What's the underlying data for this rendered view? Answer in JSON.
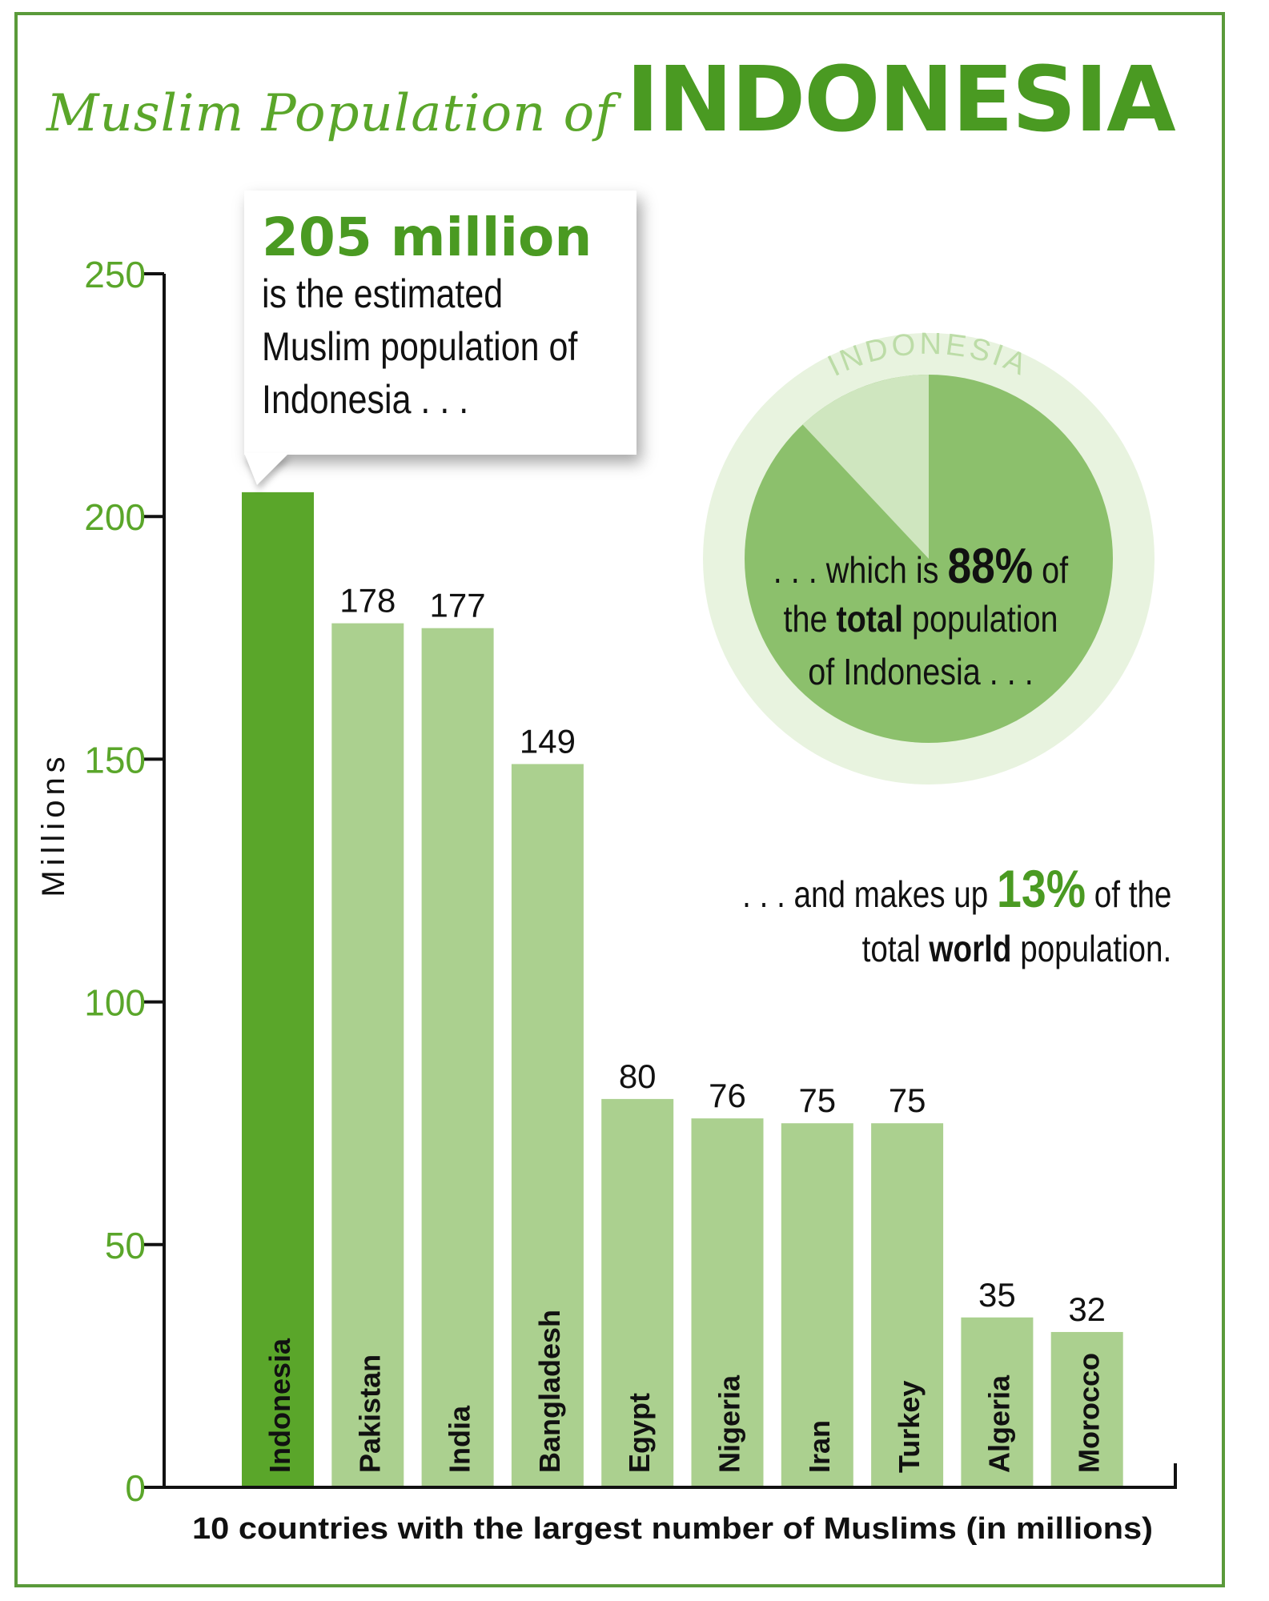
{
  "title": {
    "prefix": "Muslim Population of",
    "main": "INDONESIA"
  },
  "callout": {
    "headline": "205 million",
    "lines": [
      "is the estimated",
      "Muslim population of",
      "Indonesia . . ."
    ]
  },
  "pie": {
    "ring_label": "INDONESIA",
    "share_percent": 88,
    "text_line1_pre": ". . . which is",
    "text_line1_value": "88%",
    "text_line1_post": "of",
    "text_line2_pre": "the",
    "text_line2_bold": "total",
    "text_line2_post": "population",
    "text_line3": "of Indonesia . . ."
  },
  "world_note": {
    "line1_pre": ". . . and makes up",
    "line1_value": "13%",
    "line1_post": "of the",
    "line2_pre": "total",
    "line2_bold": "world",
    "line2_post": "population."
  },
  "colors": {
    "highlight_bar": "#5aa62a",
    "bar": "#abd08f",
    "pie_main": "#8cc06c",
    "pie_slice": "#cfe6bf",
    "pie_ring": "#e8f3df",
    "axis_label_green": "#5aa62a",
    "frame": "#5a9a3a"
  },
  "chart_data": {
    "type": "bar",
    "categories": [
      "Indonesia",
      "Pakistan",
      "India",
      "Bangladesh",
      "Egypt",
      "Nigeria",
      "Iran",
      "Turkey",
      "Algeria",
      "Morocco"
    ],
    "values": [
      205,
      178,
      177,
      149,
      80,
      76,
      75,
      75,
      35,
      32
    ],
    "value_labels": [
      "",
      "178",
      "177",
      "149",
      "80",
      "76",
      "75",
      "75",
      "35",
      "32"
    ],
    "highlight_index": 0,
    "ylabel": "Millions",
    "xlabel": "10 countries with the largest number of Muslims (in millions)",
    "ylim": [
      0,
      250
    ],
    "yticks": [
      0,
      50,
      100,
      150,
      200,
      250
    ],
    "grid": false
  }
}
